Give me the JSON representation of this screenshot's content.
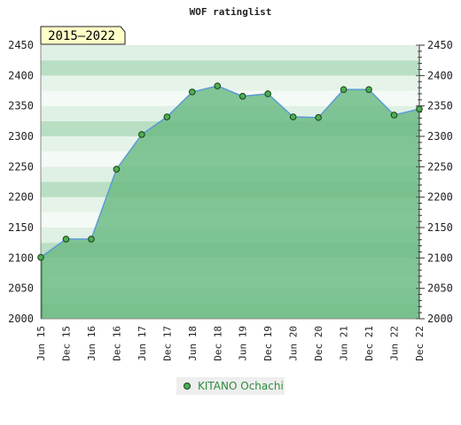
{
  "chart_data": {
    "type": "area",
    "title": "WOF ratinglist",
    "range_badge": "2015–2022",
    "categories": [
      "Jun 15",
      "Dec 15",
      "Jun 16",
      "Dec 16",
      "Jun 17",
      "Dec 17",
      "Jun 18",
      "Dec 18",
      "Jun 19",
      "Dec 19",
      "Jun 20",
      "Dec 20",
      "Jun 21",
      "Dec 21",
      "Jun 22",
      "Dec 22"
    ],
    "series": [
      {
        "name": "KITANO Ochachi",
        "values": [
          2101,
          2131,
          2131,
          2246,
          2303,
          2332,
          2373,
          2383,
          2366,
          2370,
          2332,
          2331,
          2377,
          2377,
          2335,
          2345
        ]
      }
    ],
    "ylim": [
      2000,
      2450
    ],
    "yticks": [
      2000,
      2050,
      2100,
      2150,
      2200,
      2250,
      2300,
      2350,
      2400,
      2450
    ],
    "grid": true,
    "legend": "bottom-center",
    "colors": {
      "area": "#6dbb85",
      "line": "#5b9bd5",
      "marker_fill": "#4caf50",
      "marker_stroke": "#1b3d1b",
      "badge_bg": "#ffffc8",
      "legend_text": "#2e8b3a"
    }
  }
}
